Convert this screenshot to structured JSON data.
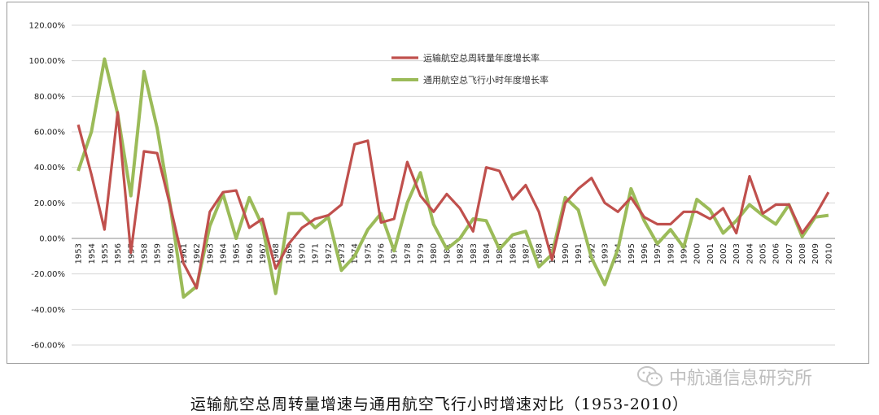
{
  "caption": "运输航空总周转量增速与通用航空飞行小时增速对比（1953-2010）",
  "watermark": {
    "icon": "wechat-icon",
    "text": "中航通信息研究所"
  },
  "chart_data": {
    "type": "line",
    "title": "",
    "xlabel": "",
    "ylabel": "",
    "ylim": [
      -60,
      120
    ],
    "yticks": [
      "120.00%",
      "100.00%",
      "80.00%",
      "60.00%",
      "40.00%",
      "20.00%",
      "0.00%",
      "-20.00%",
      "-40.00%",
      "-60.00%"
    ],
    "grid": true,
    "legend_position": "top-center",
    "categories": [
      "1953",
      "1954",
      "1955",
      "1956",
      "1957",
      "1958",
      "1959",
      "1960",
      "1961",
      "1962",
      "1963",
      "1964",
      "1965",
      "1966",
      "1967",
      "1968",
      "1969",
      "1970",
      "1971",
      "1972",
      "1973",
      "1974",
      "1975",
      "1976",
      "1977",
      "1978",
      "1979",
      "1980",
      "1981",
      "1982",
      "1983",
      "1984",
      "1985",
      "1986",
      "1987",
      "1988",
      "1989",
      "1990",
      "1991",
      "1992",
      "1993",
      "1994",
      "1995",
      "1996",
      "1997",
      "1998",
      "1999",
      "2000",
      "2001",
      "2002",
      "2003",
      "2004",
      "2005",
      "2006",
      "2007",
      "2008",
      "2009",
      "2010"
    ],
    "series": [
      {
        "name": "运输航空总周转量年度增长率",
        "color": "#c0504d",
        "values": [
          64,
          36,
          5,
          71,
          -8,
          49,
          48,
          18,
          -14,
          -28,
          15,
          26,
          27,
          6,
          11,
          -17,
          -3,
          6,
          11,
          13,
          19,
          53,
          55,
          9,
          11,
          43,
          24,
          15,
          25,
          17,
          4,
          40,
          38,
          22,
          30,
          15,
          -12,
          20,
          28,
          34,
          20,
          15,
          23,
          12,
          8,
          8,
          15,
          15,
          11,
          17,
          3,
          35,
          14,
          19,
          19,
          3,
          13,
          26
        ]
      },
      {
        "name": "通用航空总飞行小时年度增长率",
        "color": "#9bbb59",
        "values": [
          38,
          60,
          101,
          70,
          24,
          94,
          62,
          18,
          -33,
          -27,
          7,
          25,
          0,
          23,
          7,
          -31,
          14,
          14,
          6,
          12,
          -18,
          -10,
          5,
          14,
          -7,
          20,
          37,
          8,
          -6,
          0,
          11,
          10,
          -6,
          2,
          4,
          -16,
          -9,
          23,
          16,
          -11,
          -26,
          -6,
          28,
          10,
          -3,
          5,
          -5,
          22,
          16,
          3,
          10,
          19,
          13,
          8,
          19,
          1,
          12,
          13
        ]
      }
    ]
  }
}
